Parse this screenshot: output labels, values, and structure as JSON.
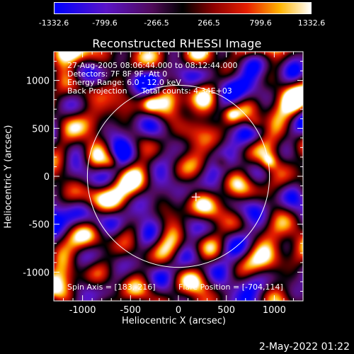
{
  "colorbar": {
    "ticks": [
      "-1332.6",
      "-799.6",
      "-266.5",
      "266.5",
      "799.6",
      "1332.6"
    ],
    "range": [
      -1332.6,
      1332.6
    ]
  },
  "chart_data": {
    "type": "heatmap",
    "title": "Reconstructed RHESSI Image",
    "xlabel": "Heliocentric X (arcsec)",
    "ylabel": "Heliocentric Y (arcsec)",
    "xlim": [
      -1300,
      1300
    ],
    "ylim": [
      -1300,
      1300
    ],
    "xticks": [
      "-1000",
      "-500",
      "0",
      "500",
      "1000"
    ],
    "xtick_values": [
      -1000,
      -500,
      0,
      500,
      1000
    ],
    "yticks": [
      "1000",
      "500",
      "0",
      "-500",
      "-1000"
    ],
    "ytick_values": [
      1000,
      500,
      0,
      -500,
      -1000
    ],
    "solar_limb_radius": 950,
    "marker": [
      183,
      -216
    ],
    "bright_spots": [
      {
        "x": -700,
        "y": 150
      },
      {
        "x": 450,
        "y": 150
      },
      {
        "x": 800,
        "y": 550
      },
      {
        "x": -300,
        "y": 750
      },
      {
        "x": 550,
        "y": 650
      },
      {
        "x": 950,
        "y": 150
      }
    ]
  },
  "info": {
    "line1": "27-Aug-2005 08:06:44.000 to 08:12:44.000",
    "line2": "Detectors: 7F 8F 9F, Att 0",
    "line3": "Energy Range: 6.0 - 12.0 keV",
    "line4": "Back Projection",
    "line4b": "Total counts: 4.34E+03",
    "spin_axis": "Spin Axis = [183,-216]",
    "flare_position": "Flare Position = [-704,114]"
  },
  "footer": "2-May-2022 01:22",
  "colors": {
    "low": "#0000ff",
    "mid_low": "#6a0dad",
    "zero": "#000000",
    "mid_high": "#cc1100",
    "high": "#ffffff"
  }
}
